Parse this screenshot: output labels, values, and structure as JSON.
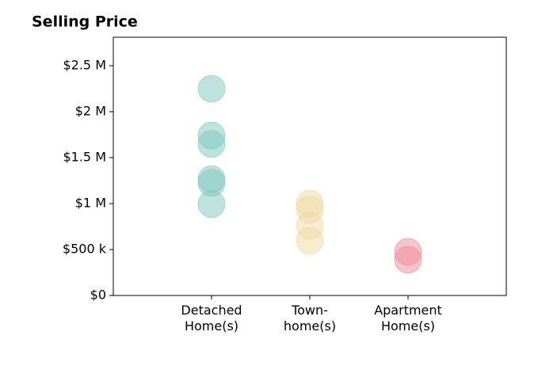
{
  "chart_data": {
    "type": "strip",
    "title": "Selling Price",
    "categories": [
      "Detached\nHome(s)",
      "Town-\nhome(s)",
      "Apartment\nHome(s)"
    ],
    "values": [
      [
        2250000,
        1740000,
        1650000,
        1265000,
        1225000,
        995000
      ],
      [
        1000000,
        935000,
        760000,
        595000
      ],
      [
        475000,
        390000
      ]
    ],
    "colors": [
      "#7ec8bd",
      "#f0d9a2",
      "#f08a98"
    ],
    "ylim": [
      0,
      2810000
    ],
    "yticks": [
      {
        "value": 0,
        "label": "$0"
      },
      {
        "value": 500000,
        "label": "$500 k"
      },
      {
        "value": 1000000,
        "label": "$1 M"
      },
      {
        "value": 1500000,
        "label": "$1.5 M"
      },
      {
        "value": 2000000,
        "label": "$2 M"
      },
      {
        "value": 2500000,
        "label": "$2.5 M"
      }
    ],
    "grid": false
  }
}
